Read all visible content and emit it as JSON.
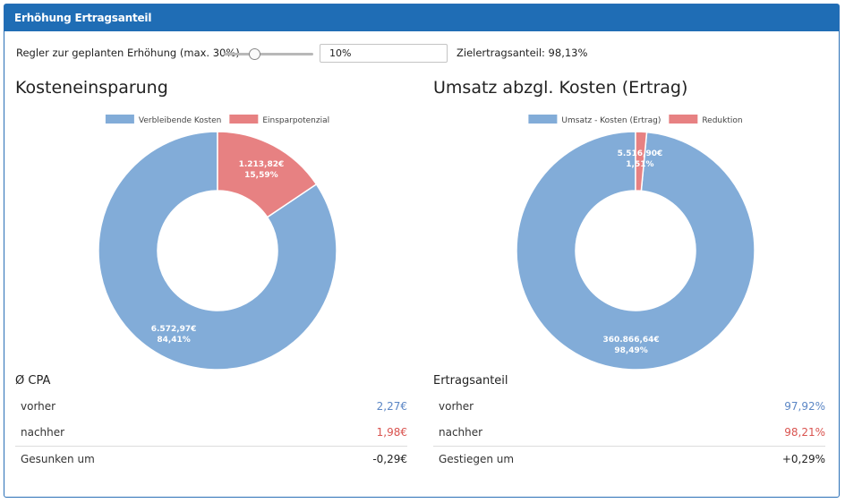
{
  "header": {
    "title": "Erhöhung Ertragsanteil"
  },
  "regler": {
    "label": "Regler zur geplanten Erhöhung (max. 30%)",
    "input_value": "10%",
    "slider_fraction": 0.333,
    "ziel_label": "Zielertragsanteil: 98,13%"
  },
  "kosten": {
    "title": "Kosteneinsparung",
    "chart_data": {
      "type": "pie",
      "title": "Kosteneinsparung",
      "legend_position": "top-center",
      "series": [
        {
          "name": "Verbleibende Kosten",
          "value": 6572.97,
          "percent": 84.41,
          "value_label": "6.572,97€",
          "percent_label": "84,41%",
          "color": "#82acd8"
        },
        {
          "name": "Einsparpotenzial",
          "value": 1213.82,
          "percent": 15.59,
          "value_label": "1.213,82€",
          "percent_label": "15,59%",
          "color": "#e78182"
        }
      ]
    },
    "stats_title": "Ø CPA",
    "rows": [
      {
        "label": "vorher",
        "value": "2,27€",
        "color": "#5b86c5"
      },
      {
        "label": "nachher",
        "value": "1,98€",
        "color": "#d9534f"
      },
      {
        "label": "Gesunken um",
        "value": "-0,29€",
        "color": "#222222"
      }
    ]
  },
  "umsatz": {
    "title": "Umsatz abzgl. Kosten (Ertrag)",
    "chart_data": {
      "type": "pie",
      "title": "Umsatz abzgl. Kosten (Ertrag)",
      "legend_position": "top-center",
      "series": [
        {
          "name": "Umsatz - Kosten (Ertrag)",
          "value": 360866.64,
          "percent": 98.49,
          "value_label": "360.866,64€",
          "percent_label": "98,49%",
          "color": "#82acd8"
        },
        {
          "name": "Reduktion",
          "value": 5516.9,
          "percent": 1.51,
          "value_label": "5.516,90€",
          "percent_label": "1,51%",
          "color": "#e78182"
        }
      ]
    },
    "stats_title": "Ertragsanteil",
    "rows": [
      {
        "label": "vorher",
        "value": "97,92%",
        "color": "#5b86c5"
      },
      {
        "label": "nachher",
        "value": "98,21%",
        "color": "#d9534f"
      },
      {
        "label": "Gestiegen um",
        "value": "+0,29%",
        "color": "#222222"
      }
    ]
  }
}
